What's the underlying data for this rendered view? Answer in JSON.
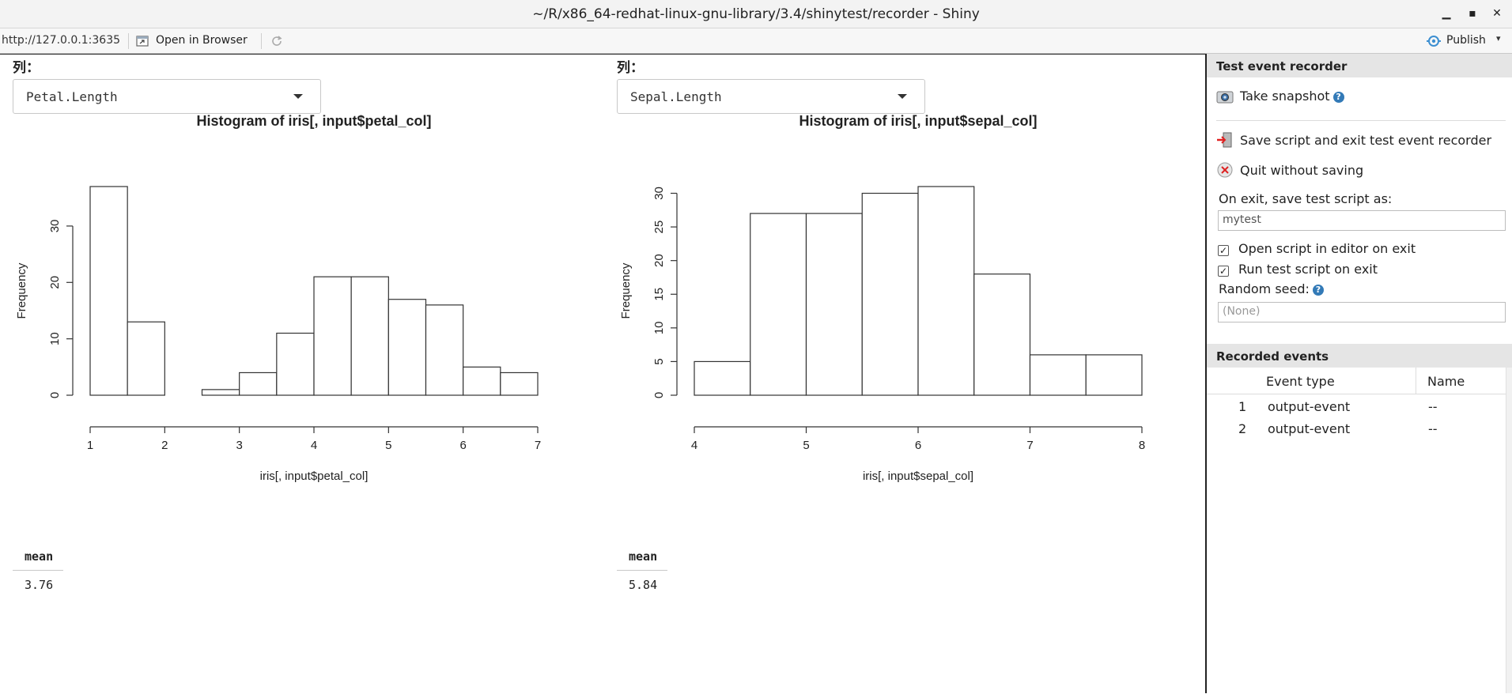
{
  "window": {
    "title": "~/R/x86_64-redhat-linux-gnu-library/3.4/shinytest/recorder - Shiny",
    "minimize": "▁",
    "maximize": "▪",
    "close": "✕"
  },
  "toolbar": {
    "url": "http://127.0.0.1:3635",
    "open_in_browser": "Open in Browser",
    "publish": "Publish",
    "icons": [
      "open-browser-icon",
      "refresh-icon",
      "publish-icon"
    ]
  },
  "left": {
    "label": "列：",
    "selected": "Petal.Length",
    "mean_header": "mean",
    "mean_value": "3.76"
  },
  "right": {
    "label": "列：",
    "selected": "Sepal.Length",
    "mean_header": "mean",
    "mean_value": "5.84"
  },
  "chart_data": [
    {
      "type": "bar",
      "title": "Histogram of iris[, input$petal_col]",
      "xlabel": "iris[, input$petal_col]",
      "ylabel": "Frequency",
      "bin_edges": [
        1,
        1.5,
        2,
        2.5,
        3,
        3.5,
        4,
        4.5,
        5,
        5.5,
        6,
        6.5,
        7
      ],
      "values": [
        37,
        13,
        0,
        1,
        4,
        11,
        21,
        21,
        17,
        16,
        5,
        4
      ],
      "x_ticks": [
        1,
        2,
        3,
        4,
        5,
        6,
        7
      ],
      "y_ticks": [
        0,
        10,
        20,
        30
      ],
      "xlim": [
        1,
        7
      ],
      "ylim": [
        0,
        37
      ],
      "grid": false
    },
    {
      "type": "bar",
      "title": "Histogram of iris[, input$sepal_col]",
      "xlabel": "iris[, input$sepal_col]",
      "ylabel": "Frequency",
      "bin_edges": [
        4,
        4.5,
        5,
        5.5,
        6,
        6.5,
        7,
        7.5,
        8
      ],
      "values": [
        5,
        27,
        27,
        30,
        31,
        18,
        6,
        6
      ],
      "x_ticks": [
        4,
        5,
        6,
        7,
        8
      ],
      "y_ticks": [
        0,
        5,
        10,
        15,
        20,
        25,
        30
      ],
      "xlim": [
        4,
        8
      ],
      "ylim": [
        0,
        31
      ],
      "grid": false
    }
  ],
  "panel": {
    "recorder_title": "Test event recorder",
    "take_snapshot": "Take snapshot",
    "save_exit": "Save script and exit test event recorder",
    "quit": "Quit without saving",
    "save_as_label": "On exit, save test script as:",
    "save_as_value": "mytest",
    "open_editor": "Open script in editor on exit",
    "run_test": "Run test script on exit",
    "random_seed_label": "Random seed:",
    "random_seed_placeholder": "(None)",
    "check_mark": "✓",
    "help": "?",
    "recorded_title": "Recorded events",
    "events_header": {
      "type": "Event type",
      "name": "Name"
    },
    "events": [
      {
        "num": "1",
        "type": "output-event",
        "name": "--"
      },
      {
        "num": "2",
        "type": "output-event",
        "name": "--"
      }
    ],
    "icons": [
      "camera-icon",
      "exit-icon",
      "close-circle-icon",
      "help-icon"
    ]
  }
}
